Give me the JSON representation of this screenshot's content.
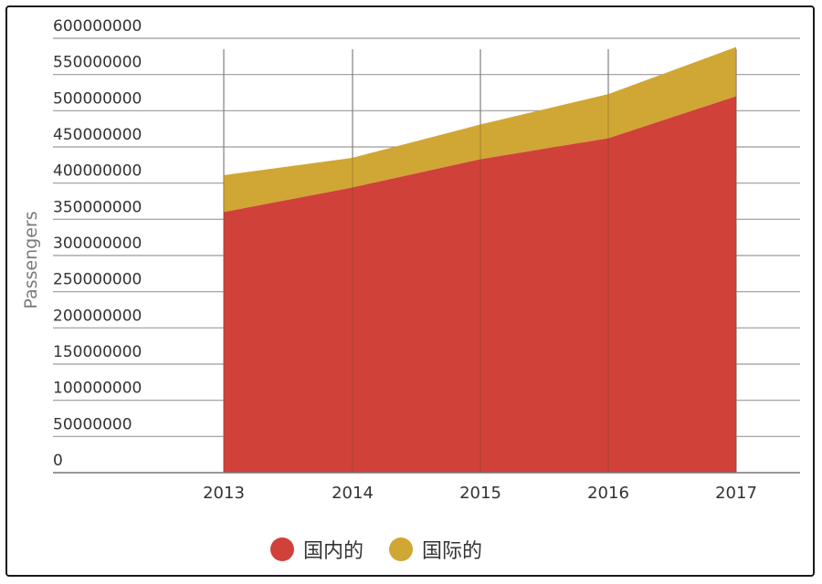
{
  "chart_data": {
    "type": "area",
    "stacked": true,
    "title": "",
    "xlabel": "",
    "ylabel": "Passengers",
    "x": [
      "2013",
      "2014",
      "2015",
      "2016",
      "2017"
    ],
    "ylim": [
      0,
      600000000
    ],
    "y_ticks": [
      "0",
      "50000000",
      "100000000",
      "150000000",
      "200000000",
      "250000000",
      "300000000",
      "350000000",
      "400000000",
      "450000000",
      "500000000",
      "550000000",
      "600000000"
    ],
    "grid": true,
    "legend_position": "bottom",
    "series": [
      {
        "name": "国内的",
        "color": "#d0413a",
        "values": [
          360000000,
          394000000,
          433000000,
          462000000,
          520000000
        ]
      },
      {
        "name": "国际的",
        "color": "#d0a734",
        "values": [
          51000000,
          41000000,
          48000000,
          61000000,
          68000000
        ]
      }
    ]
  }
}
